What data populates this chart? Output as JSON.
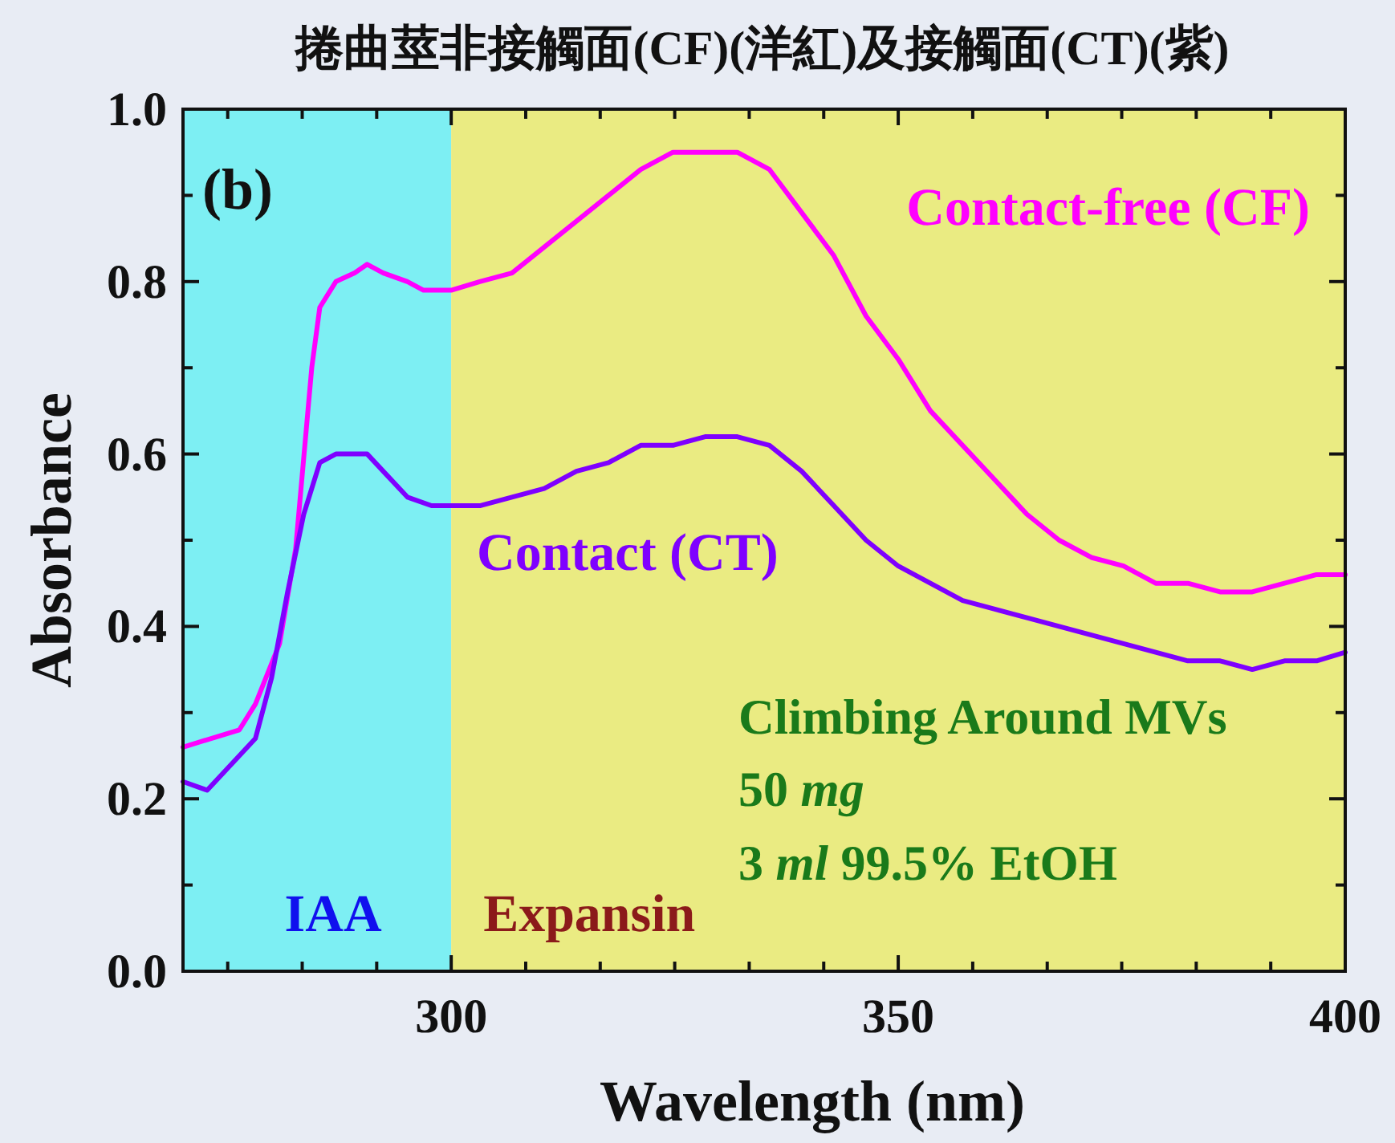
{
  "chart_data": {
    "type": "line",
    "title": "捲曲莖非接觸面(CF)(洋紅)及接觸面(CT)(紫)",
    "xlabel": "Wavelength (nm)",
    "ylabel": "Absorbance",
    "xlim": [
      270,
      400
    ],
    "ylim": [
      0,
      1
    ],
    "xticks": [
      {
        "value": 275,
        "label": null
      },
      {
        "value": 283.333,
        "label": null
      },
      {
        "value": 291.667,
        "label": null
      },
      300,
      {
        "value": 308.333,
        "label": null
      },
      {
        "value": 316.667,
        "label": null
      },
      {
        "value": 325,
        "label": null
      },
      {
        "value": 333.333,
        "label": null
      },
      {
        "value": 341.667,
        "label": null
      },
      350,
      {
        "value": 358.333,
        "label": null
      },
      {
        "value": 366.667,
        "label": null
      },
      {
        "value": 375,
        "label": null
      },
      {
        "value": 383.333,
        "label": null
      },
      {
        "value": 391.667,
        "label": null
      },
      400
    ],
    "yticks": [
      {
        "value": 0,
        "label": "0.0"
      },
      {
        "value": 0.1,
        "label": null
      },
      {
        "value": 0.2,
        "label": "0.2"
      },
      {
        "value": 0.3,
        "label": null
      },
      {
        "value": 0.4,
        "label": "0.4"
      },
      {
        "value": 0.5,
        "label": null
      },
      {
        "value": 0.6,
        "label": "0.6"
      },
      {
        "value": 0.7,
        "label": null
      },
      {
        "value": 0.8,
        "label": "0.8"
      },
      {
        "value": 0.9,
        "label": null
      },
      {
        "value": 1,
        "label": "1.0"
      }
    ],
    "marker": "none",
    "line_style": "solid",
    "bands": [
      {
        "axis": "x",
        "from": 270,
        "to": 300,
        "label": "IAA",
        "color": "#7deff3"
      },
      {
        "axis": "x",
        "from": 300,
        "to": 400,
        "label": "Expansin",
        "color": "#eaeb82"
      }
    ],
    "series": [
      {
        "name": "Contact-free (CF)",
        "color": "#ff00ff",
        "x": [
          270,
          276.3,
          278.1,
          280.8,
          282.6,
          284.4,
          285.3,
          287.1,
          289.2,
          290.6,
          292.4,
          295.1,
          296.9,
          300,
          303.2,
          306.8,
          310.4,
          314,
          317.6,
          321.2,
          324.8,
          328.4,
          332,
          335.6,
          339.2,
          342.8,
          346.4,
          350,
          353.6,
          357.2,
          360.8,
          364.4,
          368,
          371.6,
          375.2,
          378.8,
          382.4,
          386,
          389.6,
          393.2,
          396.8,
          400
        ],
        "values": [
          0.26,
          0.28,
          0.31,
          0.38,
          0.49,
          0.7,
          0.77,
          0.8,
          0.81,
          0.82,
          0.81,
          0.8,
          0.79,
          0.79,
          0.8,
          0.81,
          0.84,
          0.87,
          0.9,
          0.93,
          0.95,
          0.95,
          0.95,
          0.93,
          0.88,
          0.83,
          0.76,
          0.71,
          0.65,
          0.61,
          0.57,
          0.53,
          0.5,
          0.48,
          0.47,
          0.45,
          0.45,
          0.44,
          0.44,
          0.45,
          0.46,
          0.46
        ]
      },
      {
        "name": "Contact (CT)",
        "color": "#7f00ff",
        "x": [
          270,
          272.7,
          276.3,
          278.1,
          279.9,
          281.7,
          283.5,
          285.3,
          287.1,
          289.2,
          290.6,
          292.4,
          295.1,
          297.8,
          300,
          303.2,
          306.8,
          310.4,
          314,
          317.6,
          321.2,
          324.8,
          328.4,
          332,
          335.6,
          339.2,
          342.8,
          346.4,
          350,
          353.6,
          357.2,
          360.8,
          364.4,
          368,
          371.6,
          375.2,
          378.8,
          382.4,
          386,
          389.6,
          393.2,
          396.8,
          400
        ],
        "values": [
          0.22,
          0.21,
          0.25,
          0.27,
          0.34,
          0.44,
          0.53,
          0.59,
          0.6,
          0.6,
          0.6,
          0.58,
          0.55,
          0.54,
          0.54,
          0.54,
          0.55,
          0.56,
          0.58,
          0.59,
          0.61,
          0.61,
          0.62,
          0.62,
          0.61,
          0.58,
          0.54,
          0.5,
          0.47,
          0.45,
          0.43,
          0.42,
          0.41,
          0.4,
          0.39,
          0.38,
          0.37,
          0.36,
          0.36,
          0.35,
          0.36,
          0.36,
          0.37
        ]
      }
    ],
    "annotations": [
      "(b)",
      "Climbing Around MVs",
      "50 *mg*",
      "3 *ml* 99.5% EtOH"
    ]
  }
}
